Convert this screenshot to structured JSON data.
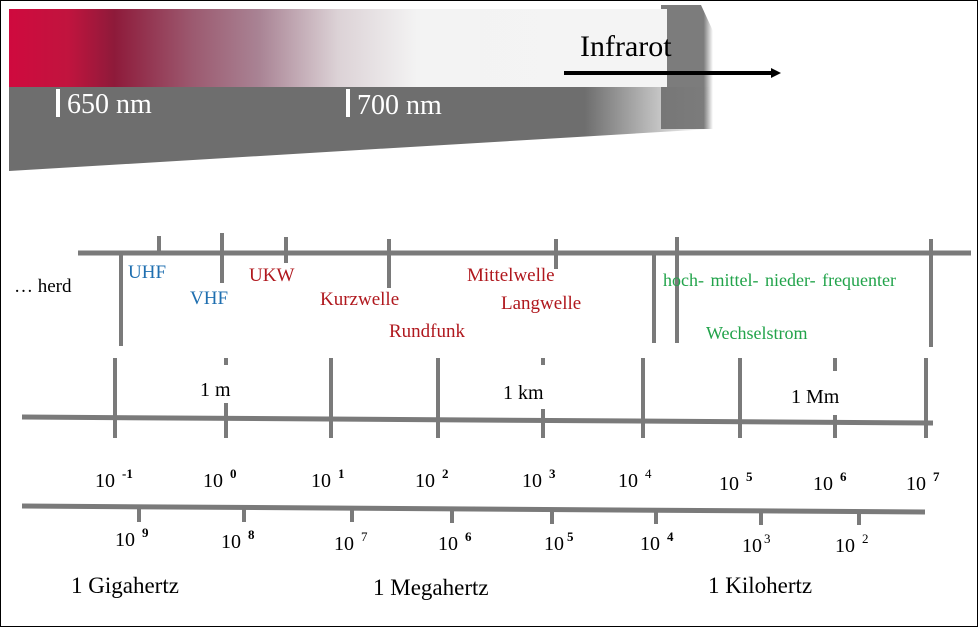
{
  "spectrum": {
    "label_650": "650 nm",
    "label_700": "700 nm",
    "infrarot": "Infrarot",
    "colors": {
      "red": "#cf0a3e",
      "grey_band": "#6e6e6e"
    }
  },
  "bands": {
    "herd": "… herd",
    "uhf": "UHF",
    "vhf": "VHF",
    "ukw": "UKW",
    "kurzwelle": "Kurzwelle",
    "rundfunk": "Rundfunk",
    "mittelwelle": "Mittelwelle",
    "langwelle": "Langwelle",
    "frequenter": "hoch-  mittel- nieder-  frequenter",
    "wechselstrom": "Wechselstrom",
    "colors": {
      "blue": "#1f6fb0",
      "red": "#b0181e",
      "green": "#21a34a"
    }
  },
  "wavelength_scale": {
    "units": [
      "1 m",
      "1 km",
      "1 Mm"
    ],
    "powers": [
      {
        "base": "10",
        "exp": "-1"
      },
      {
        "base": "10",
        "exp": "0"
      },
      {
        "base": "10",
        "exp": "1"
      },
      {
        "base": "10",
        "exp": "2"
      },
      {
        "base": "10",
        "exp": "3"
      },
      {
        "base": "10",
        "exp": "4"
      },
      {
        "base": "10",
        "exp": "5"
      },
      {
        "base": "10",
        "exp": "6"
      },
      {
        "base": "10",
        "exp": "7"
      }
    ]
  },
  "frequency_scale": {
    "powers": [
      {
        "base": "10",
        "exp": "9"
      },
      {
        "base": "10",
        "exp": "8"
      },
      {
        "base": "10",
        "exp": "7"
      },
      {
        "base": "10",
        "exp": "6"
      },
      {
        "base": "10",
        "exp": "5"
      },
      {
        "base": "10",
        "exp": "4"
      },
      {
        "base": "10",
        "exp": "3"
      },
      {
        "base": "10",
        "exp": "2"
      }
    ],
    "units": [
      "1 Gigahertz",
      "1 Megahertz",
      "1 Kilohertz"
    ]
  }
}
